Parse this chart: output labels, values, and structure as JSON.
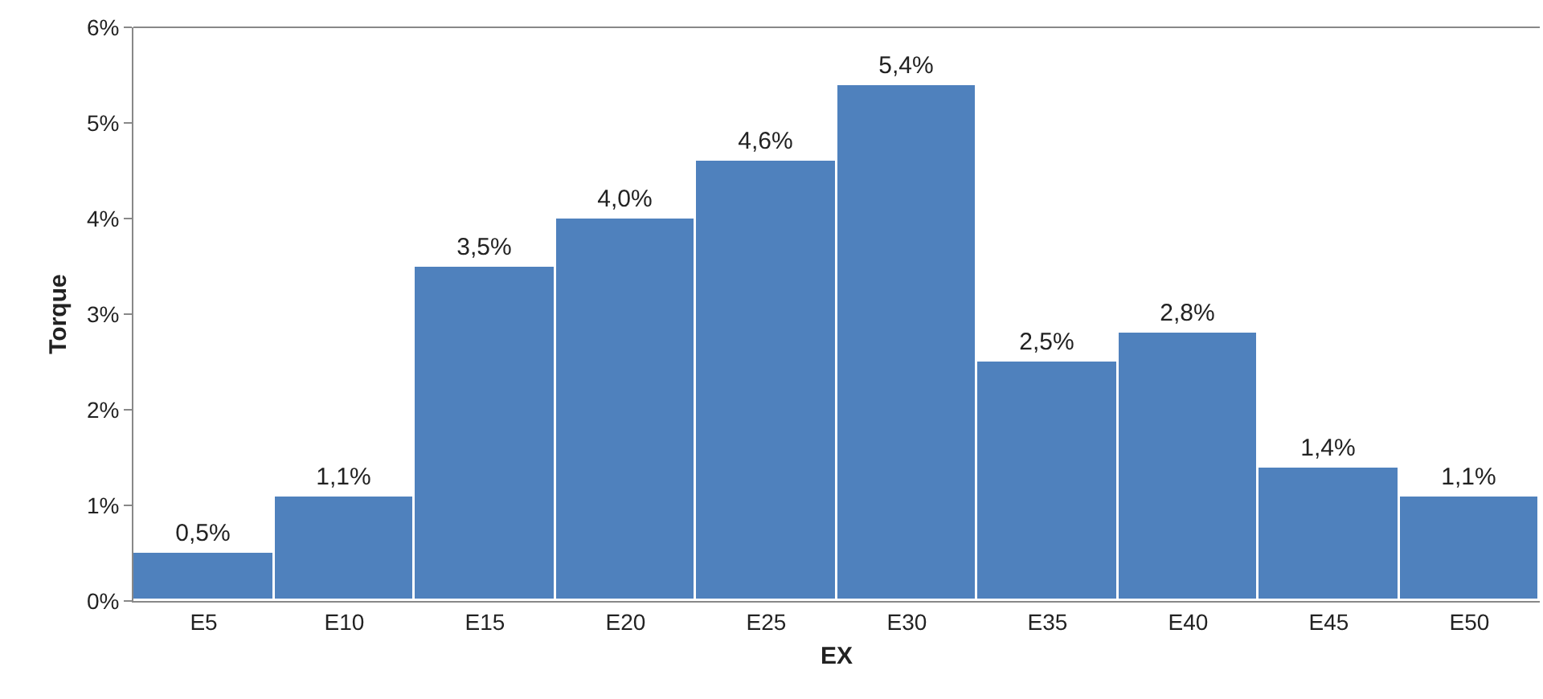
{
  "chart_data": {
    "type": "bar",
    "xlabel": "EX",
    "ylabel": "Torque",
    "categories": [
      "E5",
      "E10",
      "E15",
      "E20",
      "E25",
      "E30",
      "E35",
      "E40",
      "E45",
      "E50"
    ],
    "values": [
      0.5,
      1.1,
      3.5,
      4.0,
      4.6,
      5.4,
      2.5,
      2.8,
      1.4,
      1.1
    ],
    "value_labels": [
      "0,5%",
      "1,1%",
      "3,5%",
      "4,0%",
      "4,6%",
      "5,4%",
      "2,5%",
      "2,8%",
      "1,4%",
      "1,1%"
    ],
    "color": "#4f81bd",
    "ylim": [
      0,
      6
    ],
    "yticks": [
      {
        "value": 0,
        "label": "0%"
      },
      {
        "value": 1,
        "label": "1%"
      },
      {
        "value": 2,
        "label": "2%"
      },
      {
        "value": 3,
        "label": "3%"
      },
      {
        "value": 4,
        "label": "4%"
      },
      {
        "value": 5,
        "label": "5%"
      },
      {
        "value": 6,
        "label": "6%"
      }
    ],
    "grid": false
  }
}
